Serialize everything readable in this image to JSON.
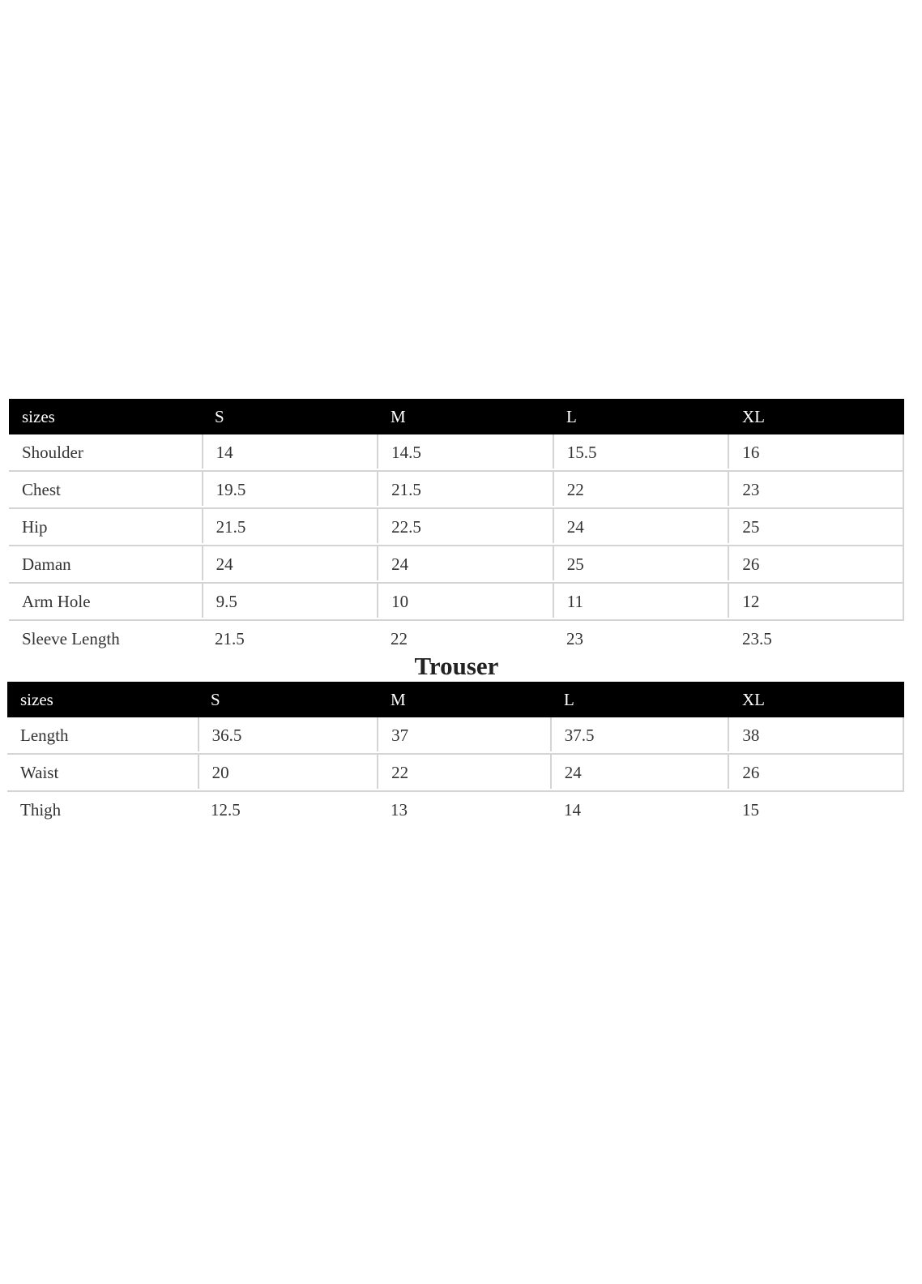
{
  "kurta_table": {
    "headers": [
      "sizes",
      "S",
      "M",
      "L",
      "XL"
    ],
    "rows": [
      [
        "Shoulder",
        "14",
        "14.5",
        "15.5",
        "16"
      ],
      [
        "Chest",
        "19.5",
        "21.5",
        "22",
        "23"
      ],
      [
        "Hip",
        "21.5",
        "22.5",
        "24",
        "25"
      ],
      [
        "Daman",
        "24",
        "24",
        "25",
        "26"
      ],
      [
        "Arm Hole",
        "9.5",
        "10",
        "11",
        "12"
      ],
      [
        "Sleeve Length",
        "21.5",
        "22",
        "23",
        "23.5"
      ]
    ]
  },
  "trouser_title": "Trouser",
  "trouser_table": {
    "headers": [
      "sizes",
      "S",
      "M",
      "L",
      "XL"
    ],
    "rows": [
      [
        "Length",
        "36.5",
        "37",
        "37.5",
        "38"
      ],
      [
        "Waist",
        "20",
        "22",
        "24",
        "26"
      ],
      [
        "Thigh",
        "12.5",
        "13",
        "14",
        "15"
      ]
    ]
  }
}
